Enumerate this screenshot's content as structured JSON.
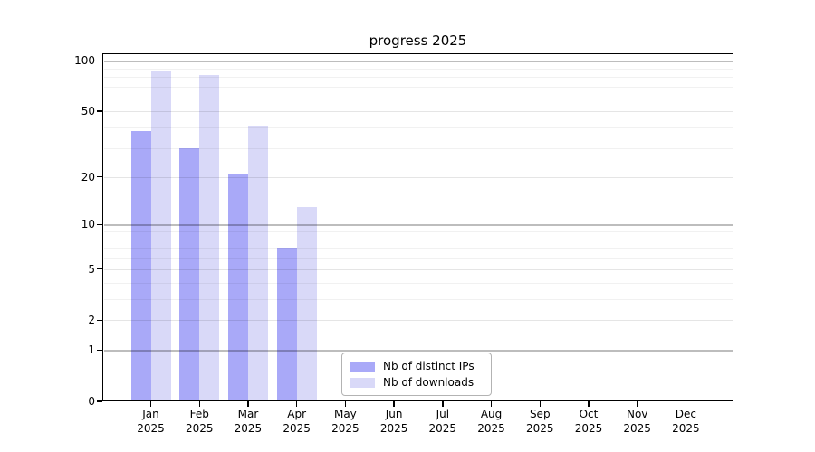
{
  "chart_data": {
    "type": "bar",
    "title": "progress 2025",
    "x_axis": {
      "months": [
        "Jan",
        "Feb",
        "Mar",
        "Apr",
        "May",
        "Jun",
        "Jul",
        "Aug",
        "Sep",
        "Oct",
        "Nov",
        "Dec"
      ],
      "year": "2025"
    },
    "y_axis": {
      "scale": "log10(1+y)",
      "tick_values": [
        0,
        1,
        2,
        5,
        10,
        20,
        50,
        100
      ],
      "minor_grid_values": [
        3,
        4,
        6,
        7,
        8,
        9,
        30,
        40,
        60,
        70,
        80,
        90
      ],
      "decade_grid_values": [
        1,
        10,
        100
      ],
      "top_value": 111
    },
    "series": [
      {
        "name": "Nb of distinct IPs",
        "color": "#a9a9f8",
        "values": [
          38,
          30,
          21,
          7,
          null,
          null,
          null,
          null,
          null,
          null,
          null,
          null
        ]
      },
      {
        "name": "Nb of downloads",
        "color": "#d9d9f8",
        "values": [
          88,
          82,
          41,
          13,
          null,
          null,
          null,
          null,
          null,
          null,
          null,
          null
        ]
      }
    ],
    "legend_position": "lower center",
    "grid": true,
    "background_color": "#ffffff"
  }
}
